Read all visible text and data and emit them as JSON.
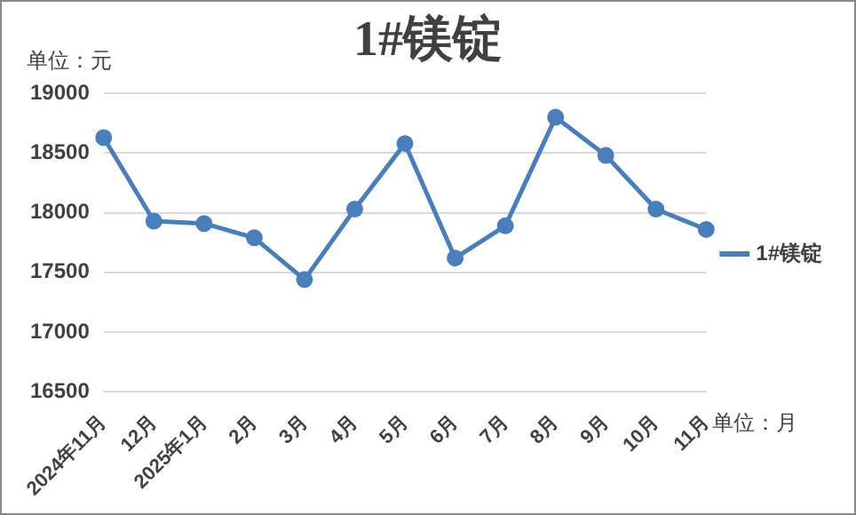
{
  "chart_data": {
    "type": "line",
    "title": "1#镁锭",
    "annotations": [
      "单位：元",
      "单位：月"
    ],
    "categories": [
      "2024年11月",
      "12月",
      "2025年1月",
      "2月",
      "3月",
      "4月",
      "5月",
      "6月",
      "7月",
      "8月",
      "9月",
      "10月",
      "11月"
    ],
    "series": [
      {
        "name": "1#镁锭",
        "color": "#4a7ebb",
        "values": [
          18630,
          17930,
          17910,
          17790,
          17440,
          18030,
          18580,
          17620,
          17890,
          18800,
          18480,
          18030,
          17860
        ]
      }
    ],
    "ylim": [
      16500,
      19000
    ],
    "yticks": [
      16500,
      17000,
      17500,
      18000,
      18500,
      19000
    ],
    "grid": "y",
    "legend": "right",
    "marker": "circle",
    "line_style": "solid"
  }
}
